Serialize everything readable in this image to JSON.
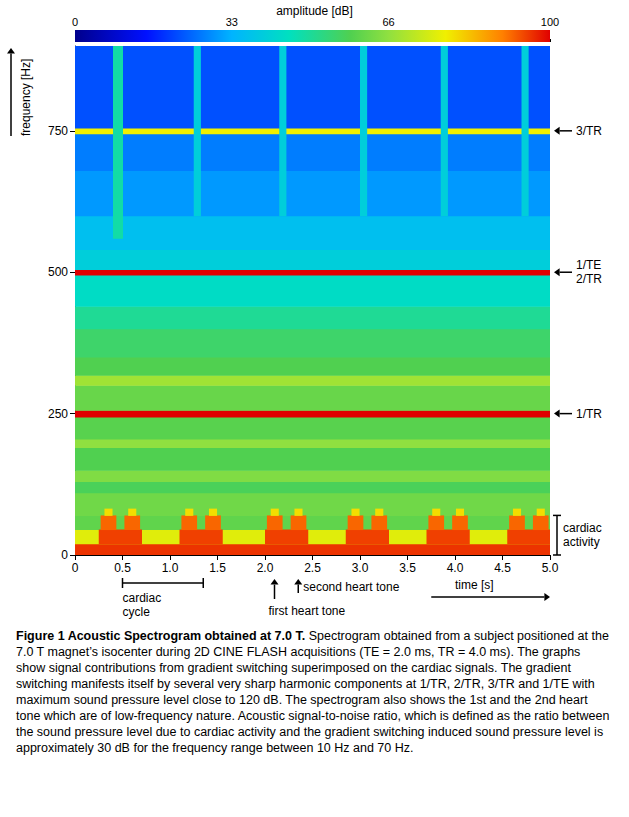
{
  "chart_data": {
    "type": "heatmap",
    "title": "amplitude [dB]",
    "x_label": "time [s]",
    "y_label": "frequency [Hz]",
    "xlim": [
      0,
      5
    ],
    "xticks": [
      0,
      0.5,
      {
        "value": 1,
        "label": "1.0"
      },
      1.5,
      {
        "value": 2,
        "label": "2.0"
      },
      2.5,
      {
        "value": 3,
        "label": "3.0"
      },
      3.5,
      {
        "value": 4,
        "label": "4.0"
      },
      4.5,
      {
        "value": 5,
        "label": "5.0"
      }
    ],
    "ylim": [
      0,
      900
    ],
    "yticks": [
      0,
      250,
      500,
      750
    ],
    "grid": false,
    "colorbar": {
      "range": [
        0,
        100
      ],
      "ticks": [
        0,
        33,
        66,
        100
      ]
    },
    "cells": [
      [
        0,
        5,
        0,
        20,
        96
      ],
      [
        0,
        5,
        20,
        45,
        76
      ],
      [
        0,
        5,
        45,
        70,
        60
      ],
      [
        0,
        5,
        70,
        110,
        62
      ],
      [
        0,
        5,
        110,
        130,
        57
      ],
      [
        0,
        5,
        130,
        150,
        64
      ],
      [
        0,
        5,
        150,
        190,
        58
      ],
      [
        0,
        5,
        190,
        205,
        66
      ],
      [
        0,
        5,
        205,
        244,
        59
      ],
      [
        0,
        5,
        244,
        256,
        100
      ],
      [
        0,
        5,
        256,
        300,
        61
      ],
      [
        0,
        5,
        300,
        318,
        68
      ],
      [
        0,
        5,
        318,
        350,
        58
      ],
      [
        0,
        5,
        350,
        400,
        55
      ],
      [
        0,
        5,
        400,
        440,
        50
      ],
      [
        0,
        5,
        440,
        495,
        44
      ],
      [
        0,
        5,
        495,
        505,
        100
      ],
      [
        0,
        5,
        505,
        540,
        40
      ],
      [
        0,
        5,
        540,
        600,
        36
      ],
      [
        0,
        5,
        600,
        680,
        30
      ],
      [
        0,
        5,
        680,
        745,
        27
      ],
      [
        0,
        5,
        745,
        755,
        78
      ],
      [
        0,
        5,
        755,
        900,
        22
      ],
      [
        0.25,
        0.7,
        20,
        45,
        95
      ],
      [
        1.1,
        1.55,
        20,
        45,
        95
      ],
      [
        2.0,
        2.45,
        20,
        45,
        95
      ],
      [
        2.85,
        3.3,
        20,
        45,
        95
      ],
      [
        3.7,
        4.15,
        20,
        45,
        95
      ],
      [
        4.55,
        5.0,
        20,
        45,
        95
      ],
      [
        0.27,
        0.43,
        45,
        70,
        92
      ],
      [
        0.52,
        0.68,
        45,
        70,
        92
      ],
      [
        1.12,
        1.28,
        45,
        70,
        92
      ],
      [
        1.37,
        1.53,
        45,
        70,
        92
      ],
      [
        2.02,
        2.18,
        45,
        70,
        92
      ],
      [
        2.27,
        2.43,
        45,
        70,
        92
      ],
      [
        2.87,
        3.03,
        45,
        70,
        92
      ],
      [
        3.12,
        3.28,
        45,
        70,
        92
      ],
      [
        3.72,
        3.88,
        45,
        70,
        92
      ],
      [
        3.97,
        4.13,
        45,
        70,
        92
      ],
      [
        4.57,
        4.73,
        45,
        70,
        92
      ],
      [
        4.82,
        4.98,
        45,
        70,
        92
      ],
      [
        0.31,
        0.39,
        70,
        82,
        80
      ],
      [
        0.56,
        0.64,
        70,
        82,
        80
      ],
      [
        1.16,
        1.24,
        70,
        82,
        80
      ],
      [
        1.41,
        1.49,
        70,
        82,
        80
      ],
      [
        2.06,
        2.14,
        70,
        82,
        80
      ],
      [
        2.31,
        2.39,
        70,
        82,
        80
      ],
      [
        2.91,
        2.99,
        70,
        82,
        80
      ],
      [
        3.16,
        3.24,
        70,
        82,
        80
      ],
      [
        3.76,
        3.84,
        70,
        82,
        80
      ],
      [
        4.01,
        4.09,
        70,
        82,
        80
      ],
      [
        4.61,
        4.69,
        70,
        82,
        80
      ],
      [
        4.86,
        4.94,
        70,
        82,
        80
      ],
      [
        0.4,
        0.5,
        560,
        900,
        48
      ],
      [
        1.25,
        1.32,
        600,
        900,
        40
      ],
      [
        2.15,
        2.22,
        600,
        900,
        40
      ],
      [
        3.0,
        3.07,
        600,
        900,
        40
      ],
      [
        3.85,
        3.92,
        600,
        900,
        40
      ],
      [
        4.7,
        4.77,
        600,
        900,
        40
      ]
    ],
    "annotations": [
      {
        "text": "3/TR",
        "y": 750
      },
      {
        "lines": [
          "1/TE",
          "2/TR"
        ],
        "y": 500
      },
      {
        "text": "1/TR",
        "y": 250
      },
      {
        "text": "cardiac activity",
        "y": [
          0,
          70
        ]
      },
      {
        "text": "cardiac cycle",
        "x": [
          0.5,
          1.35
        ]
      },
      {
        "text": "first heart tone",
        "x": 2.1
      },
      {
        "text": "second heart tone",
        "x": 2.35
      }
    ]
  },
  "caption": {
    "title": "Figure 1 Acoustic Spectrogram obtained at 7.0 T.",
    "text": "Spectrogram obtained from a subject positioned at the 7.0 T magnet’s isocenter during 2D CINE FLASH acquisitions (TE = 2.0 ms, TR = 4.0 ms). The graphs show signal contributions from gradient switching superimposed on the cardiac signals. The gradient switching manifests itself by several very sharp harmonic components at 1/TR, 2/TR, 3/TR and 1/TE with maximum sound pressure level close to 120 dB. The spectrogram also shows the 1st and the 2nd heart tone which are of low-frequency nature. Acoustic signal-to-noise ratio, which is defined as the ratio between the sound pressure level due to cardiac activity and the gradient switching induced sound pressure level is approximately 30 dB for the frequency range between 10 Hz and 70 Hz."
  }
}
